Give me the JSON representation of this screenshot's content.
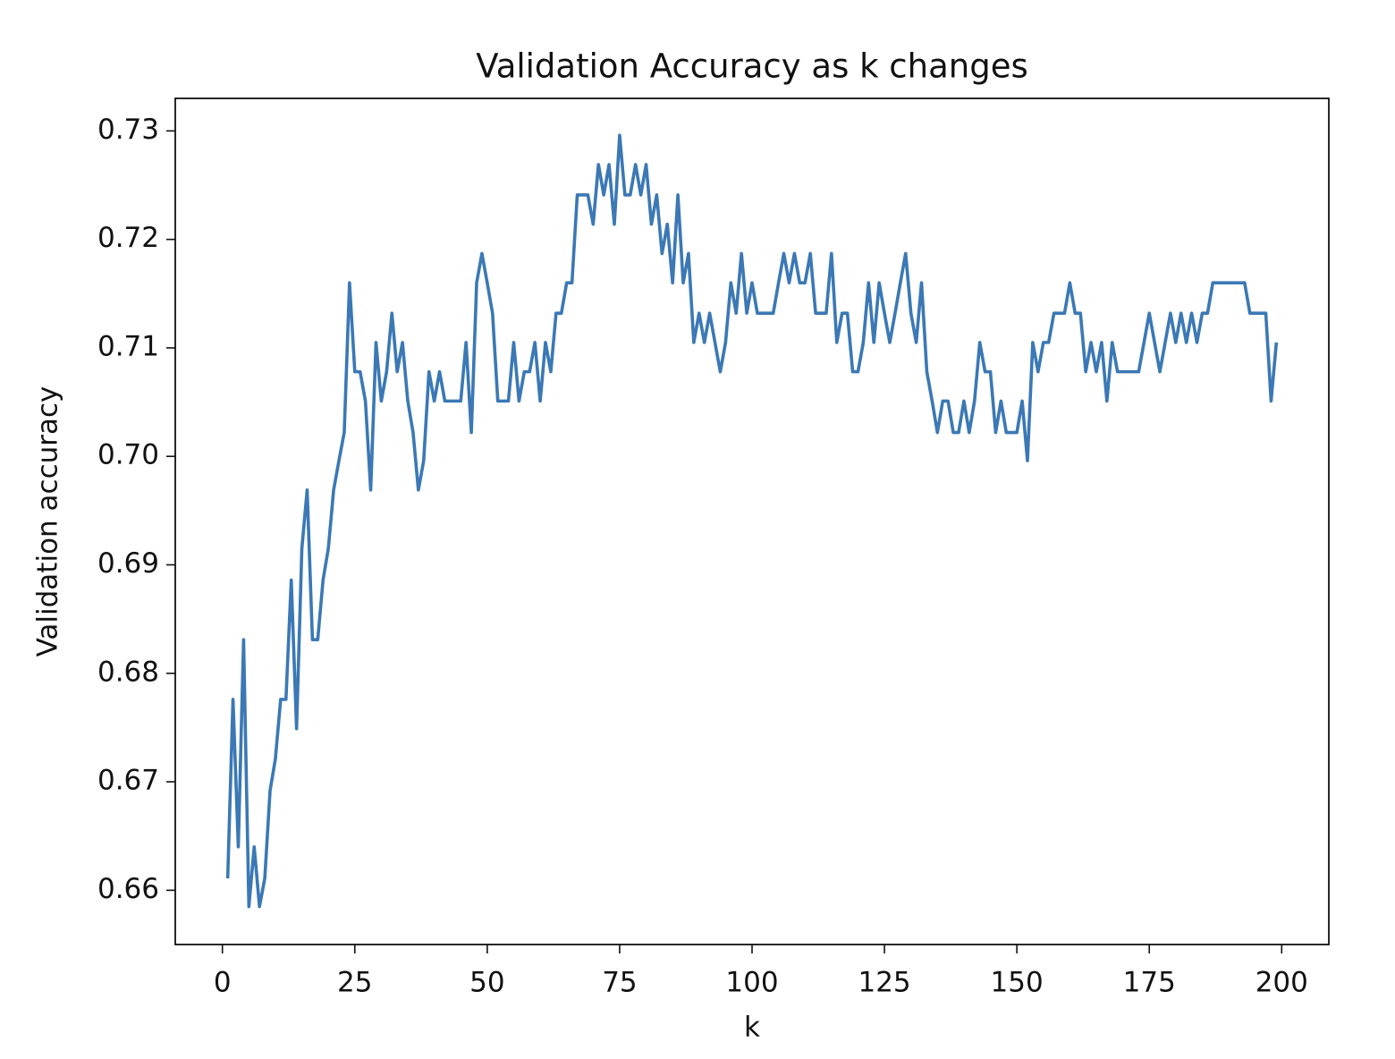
{
  "chart_data": {
    "type": "line",
    "title": "Validation Accuracy as k changes",
    "x_label": "k",
    "y_label": "Validation accuracy",
    "x": [
      1,
      2,
      3,
      4,
      5,
      6,
      7,
      8,
      9,
      10,
      11,
      12,
      13,
      14,
      15,
      16,
      17,
      18,
      19,
      20,
      21,
      22,
      23,
      24,
      25,
      26,
      27,
      28,
      29,
      30,
      31,
      32,
      33,
      34,
      35,
      36,
      37,
      38,
      39,
      40,
      41,
      42,
      43,
      44,
      45,
      46,
      47,
      48,
      49,
      50,
      51,
      52,
      53,
      54,
      55,
      56,
      57,
      58,
      59,
      60,
      61,
      62,
      63,
      64,
      65,
      66,
      67,
      68,
      69,
      70,
      71,
      72,
      73,
      74,
      75,
      76,
      77,
      78,
      79,
      80,
      81,
      82,
      83,
      84,
      85,
      86,
      87,
      88,
      89,
      90,
      91,
      92,
      93,
      94,
      95,
      96,
      97,
      98,
      99,
      100,
      101,
      102,
      103,
      104,
      105,
      106,
      107,
      108,
      109,
      110,
      111,
      112,
      113,
      114,
      115,
      116,
      117,
      118,
      119,
      120,
      121,
      122,
      123,
      124,
      125,
      126,
      127,
      128,
      129,
      130,
      131,
      132,
      133,
      134,
      135,
      136,
      137,
      138,
      139,
      140,
      141,
      142,
      143,
      144,
      145,
      146,
      147,
      148,
      149,
      150,
      151,
      152,
      153,
      154,
      155,
      156,
      157,
      158,
      159,
      160,
      161,
      162,
      163,
      164,
      165,
      166,
      167,
      168,
      169,
      170,
      171,
      172,
      173,
      174,
      175,
      176,
      177,
      178,
      179,
      180,
      181,
      182,
      183,
      184,
      185,
      186,
      187,
      188,
      189,
      190,
      191,
      192,
      193,
      194,
      195,
      196,
      197,
      198,
      199
    ],
    "series": [
      {
        "name": "Validation accuracy",
        "color": "#3b78b5",
        "values": [
          0.6611,
          0.6776,
          0.664,
          0.6831,
          0.6585,
          0.664,
          0.6585,
          0.6611,
          0.6692,
          0.6721,
          0.6776,
          0.6776,
          0.6886,
          0.6749,
          0.6915,
          0.6969,
          0.6831,
          0.6831,
          0.6886,
          0.6915,
          0.6969,
          0.6996,
          0.7022,
          0.716,
          0.7078,
          0.7078,
          0.7051,
          0.6969,
          0.7105,
          0.7051,
          0.7078,
          0.7132,
          0.7078,
          0.7105,
          0.7051,
          0.7022,
          0.6969,
          0.6996,
          0.7078,
          0.7051,
          0.7078,
          0.7051,
          0.7051,
          0.7051,
          0.7051,
          0.7105,
          0.7022,
          0.716,
          0.7187,
          0.716,
          0.7132,
          0.7051,
          0.7051,
          0.7051,
          0.7105,
          0.7051,
          0.7078,
          0.7078,
          0.7105,
          0.7051,
          0.7105,
          0.7078,
          0.7132,
          0.7132,
          0.716,
          0.716,
          0.7241,
          0.7241,
          0.7241,
          0.7214,
          0.7269,
          0.7241,
          0.7269,
          0.7214,
          0.7296,
          0.7241,
          0.7241,
          0.7269,
          0.7241,
          0.7269,
          0.7214,
          0.7241,
          0.7187,
          0.7214,
          0.716,
          0.7241,
          0.716,
          0.7187,
          0.7105,
          0.7132,
          0.7105,
          0.7132,
          0.7105,
          0.7078,
          0.7105,
          0.716,
          0.7132,
          0.7187,
          0.7132,
          0.716,
          0.7132,
          0.7132,
          0.7132,
          0.7132,
          0.716,
          0.7187,
          0.716,
          0.7187,
          0.716,
          0.716,
          0.7187,
          0.7132,
          0.7132,
          0.7132,
          0.7187,
          0.7105,
          0.7132,
          0.7132,
          0.7078,
          0.7078,
          0.7105,
          0.716,
          0.7105,
          0.716,
          0.7132,
          0.7105,
          0.7132,
          0.716,
          0.7187,
          0.7132,
          0.7105,
          0.716,
          0.7078,
          0.7051,
          0.7022,
          0.7051,
          0.7051,
          0.7022,
          0.7022,
          0.7051,
          0.7022,
          0.7051,
          0.7105,
          0.7078,
          0.7078,
          0.7022,
          0.7051,
          0.7022,
          0.7022,
          0.7022,
          0.7051,
          0.6996,
          0.7105,
          0.7078,
          0.7105,
          0.7105,
          0.7132,
          0.7132,
          0.7132,
          0.716,
          0.7132,
          0.7132,
          0.7078,
          0.7105,
          0.7078,
          0.7105,
          0.7051,
          0.7105,
          0.7078,
          0.7078,
          0.7078,
          0.7078,
          0.7078,
          0.7105,
          0.7132,
          0.7105,
          0.7078,
          0.7105,
          0.7132,
          0.7105,
          0.7132,
          0.7105,
          0.7132,
          0.7105,
          0.7132,
          0.7132,
          0.716,
          0.716,
          0.716,
          0.716,
          0.716,
          0.716,
          0.716,
          0.7132,
          0.7132,
          0.7132,
          0.7132,
          0.7051,
          0.7105
        ]
      }
    ],
    "xlim": [
      -8.9,
      208.9
    ],
    "xticks": [
      0,
      25,
      50,
      75,
      100,
      125,
      150,
      175,
      200
    ],
    "ylim": [
      0.655,
      0.733
    ],
    "yticks": [
      0.66,
      0.67,
      0.68,
      0.69,
      {
        "value": 0.7,
        "label": "0.70"
      },
      0.71,
      0.72,
      0.73
    ]
  }
}
